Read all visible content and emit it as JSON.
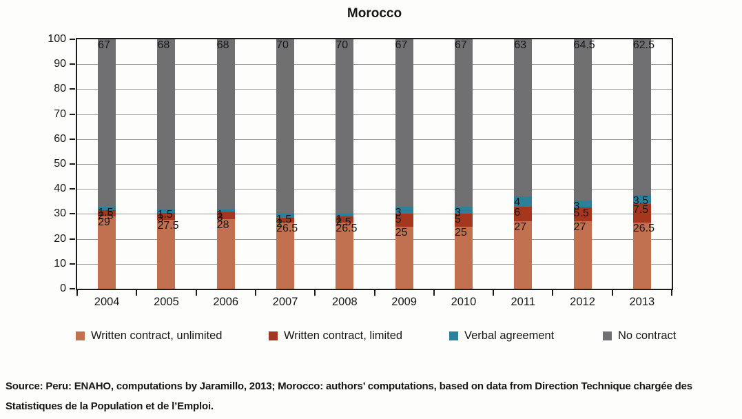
{
  "chart_data": {
    "type": "bar",
    "stacked": true,
    "title": "Morocco",
    "categories": [
      "2004",
      "2005",
      "2006",
      "2007",
      "2008",
      "2009",
      "2010",
      "2011",
      "2012",
      "2013"
    ],
    "series": [
      {
        "name": "Written contract, unlimited",
        "color": "#c1714f",
        "values": [
          29,
          27.5,
          28,
          26.5,
          26.5,
          25,
          25,
          27,
          27,
          26.5
        ]
      },
      {
        "name": "Written contract, limited",
        "color": "#a4371e",
        "values": [
          2.5,
          3,
          3,
          2,
          2.5,
          5,
          5,
          6,
          5.5,
          7.5
        ]
      },
      {
        "name": "Verbal agreement",
        "color": "#2e7f9a",
        "values": [
          1.5,
          1.5,
          1,
          1.5,
          1,
          3,
          3,
          4,
          3,
          3.5
        ]
      },
      {
        "name": "No contract",
        "color": "#707073",
        "values": [
          67,
          68,
          68,
          70,
          70,
          67,
          67,
          63,
          64.5,
          62.5
        ]
      }
    ],
    "ylim": [
      0,
      100
    ],
    "yticks": [
      0,
      10,
      20,
      30,
      40,
      50,
      60,
      70,
      80,
      90,
      100
    ],
    "grid": true,
    "grid_color": "#9a9a9a",
    "axis_color": "#1b1b1b",
    "legend_position": "bottom"
  },
  "source": {
    "text": "Source: Peru: ENAHO, computations by Jaramillo, 2013; Morocco: authors’ computations, based on data from Direction Technique chargée des Statistiques de la Population et de l’Emploi."
  }
}
